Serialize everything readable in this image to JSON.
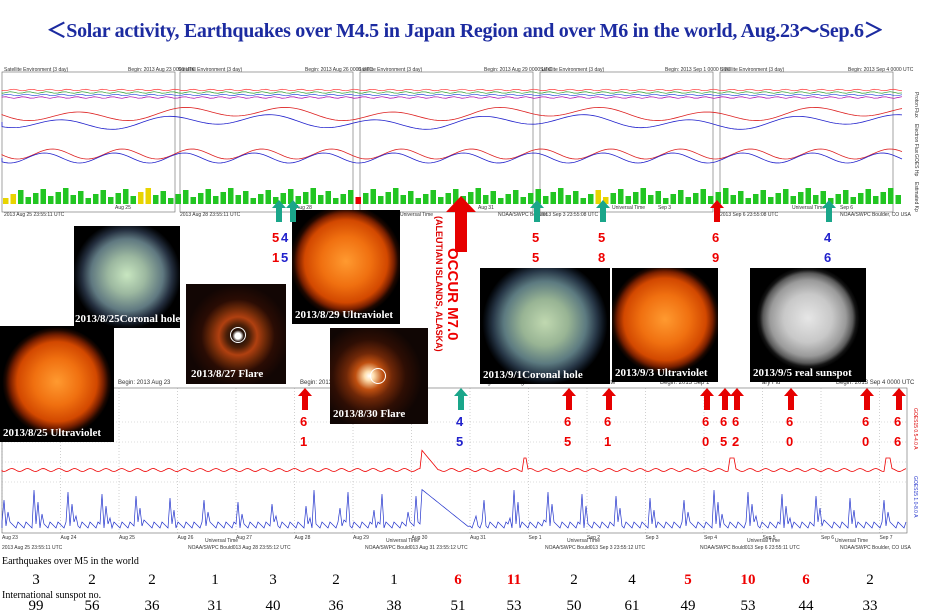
{
  "title": "＜Solar activity, Earthquakes over M4.5 in Japan Region and over M6 in the world, Aug.23～Sep.6＞",
  "top_panel": {
    "headers": [
      "Satellite Environment (3 day)",
      "Begin: 2013 Aug 23 0000 UTC",
      "Satellite Environment (3 day)",
      "Begin: 2013 Aug 26 0000 UTC",
      "Satellite Environment (3 day)",
      "Begin: 2013 Aug 29 0000 UTC",
      "Satellite Environment (3 day)",
      "Begin: 2013 Sep 1 0000 UTC",
      "Satellite Environment (3 day)",
      "Begin: 2013 Sep 4 0000 UTC"
    ],
    "footers": [
      "2013 Aug 25 23:55:11 UTC",
      "Aug 25",
      "2013 Aug 28 23:55:11 UTC",
      "Aug 28",
      "Universal Time",
      "Aug 31",
      "NOAA/SWPC Boulder",
      "2013 Sep 3 23:55:08 UTC",
      "Universal Time",
      "Sep 3",
      "2013 Sep 6 23:55:08 UTC",
      "Universal Time",
      "Sep 6",
      "NOAA/SWPC Boulder, CO USA"
    ],
    "side_labels": [
      "Proton Flux",
      "Electron Flux",
      "GOES Hp",
      "Estimated Kp"
    ]
  },
  "bottom_panel": {
    "headers": [
      "Begin: 2013 Aug 23",
      "Begin: 2013 Aug 26",
      "Begin: 2013 Aug 29",
      "1-minute",
      "Begin: 2013 Sep 1",
      "ary Flu",
      "Begin: 2013 Sep 4 0000 UTC"
    ],
    "dates": [
      "Aug 23",
      "Aug 24",
      "Aug 25",
      "Aug 26",
      "Aug 27",
      "Aug 28",
      "Aug 29",
      "Aug 30",
      "Aug 31",
      "Sep 1",
      "Sep 2",
      "Sep 3",
      "Sep 4",
      "Sep 5",
      "Sep 6",
      "Sep 7"
    ],
    "footers": [
      "2013 Aug 25 23:55:11 UTC",
      "Universal Time",
      "NOAA/SWPC Bould013 Aug 28 23:55:12 UTC",
      "Universal Time",
      "NOAA/SWPC Bould013 Aug 31 23:55:12 UTC",
      "Universal Time",
      "NOAA/SWPC Bould013 Sep 3 23:55:12 UTC",
      "Universal Time",
      "NOAA/SWPC Bould013 Sep 6 23:55:11 UTC",
      "Universal Time",
      "NOAA/SWPC Boulder, CO USA"
    ],
    "side_labels": [
      "GOES15 0.5-4.0 A",
      "GOES15 1.0-8.0 A"
    ]
  },
  "images": [
    {
      "label": "2013/8/25Coronal hole"
    },
    {
      "label": "2013/8/29 Ultraviolet"
    },
    {
      "label": "2013/8/27 Flare"
    },
    {
      "label": "2013/8/30 Flare"
    },
    {
      "label": "2013/8/25 Ultraviolet"
    },
    {
      "label": "2013/9/1Coronal hole"
    },
    {
      "label": "2013/9/3 Ultraviolet"
    },
    {
      "label": "2013/9/5 real sunspot"
    }
  ],
  "occur": {
    "main": "OCCUR M7.0",
    "region": "(ALEUTIAN ISLANDS, ALASKA)"
  },
  "top_marks": [
    {
      "a": "5",
      "b": "1",
      "c": "4",
      "d": "5"
    },
    {
      "a": "5",
      "b": "5"
    },
    {
      "a": "5",
      "b": "8"
    },
    {
      "a": "6",
      "b": "9"
    },
    {
      "a": "4",
      "b": "6"
    }
  ],
  "bottom_marks": [
    {
      "a": "6",
      "b": "1"
    },
    {
      "a": "4",
      "b": "5"
    },
    {
      "a": "6",
      "b": "5"
    },
    {
      "a": "6",
      "b": "1"
    },
    {
      "a": "6",
      "b": "0"
    },
    {
      "a": "6",
      "b": "5"
    },
    {
      "a": "6",
      "b": "2"
    },
    {
      "a": "6",
      "b": "0"
    },
    {
      "a": "6",
      "b": "0"
    },
    {
      "a": "6",
      "b": "6"
    }
  ],
  "summary": {
    "eq_label": "Earthquakes over M5 in the world",
    "eq_values": [
      "3",
      "2",
      "2",
      "1",
      "3",
      "2",
      "1",
      "6",
      "11",
      "2",
      "4",
      "5",
      "10",
      "6",
      "2"
    ],
    "eq_colors": [
      "#000",
      "#000",
      "#000",
      "#000",
      "#000",
      "#000",
      "#000",
      "#e00",
      "#e00",
      "#000",
      "#000",
      "#e00",
      "#e00",
      "#e00",
      "#000"
    ],
    "sunspot_label": "International sunspot no.",
    "sunspot_values": [
      "99",
      "56",
      "36",
      "31",
      "40",
      "36",
      "38",
      "51",
      "53",
      "50",
      "61",
      "49",
      "53",
      "44",
      "33"
    ]
  },
  "colors": {
    "title": "#1c2ba0",
    "red_arrow": "#e60000",
    "green_arrow": "#1aa68a",
    "kp_green": "#22c522",
    "kp_yellow": "#e8d400",
    "kp_red": "#e60000"
  }
}
